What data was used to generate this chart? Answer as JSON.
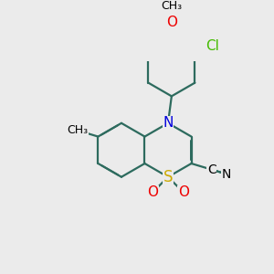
{
  "bg_color": "#ebebeb",
  "bond_color": "#2d6b5e",
  "bond_width": 1.6,
  "dbo": 0.12,
  "fs": 11,
  "colors": {
    "N": "#0000dd",
    "S": "#ccaa00",
    "O": "#ee0000",
    "Cl": "#44bb00",
    "C": "#000000"
  }
}
